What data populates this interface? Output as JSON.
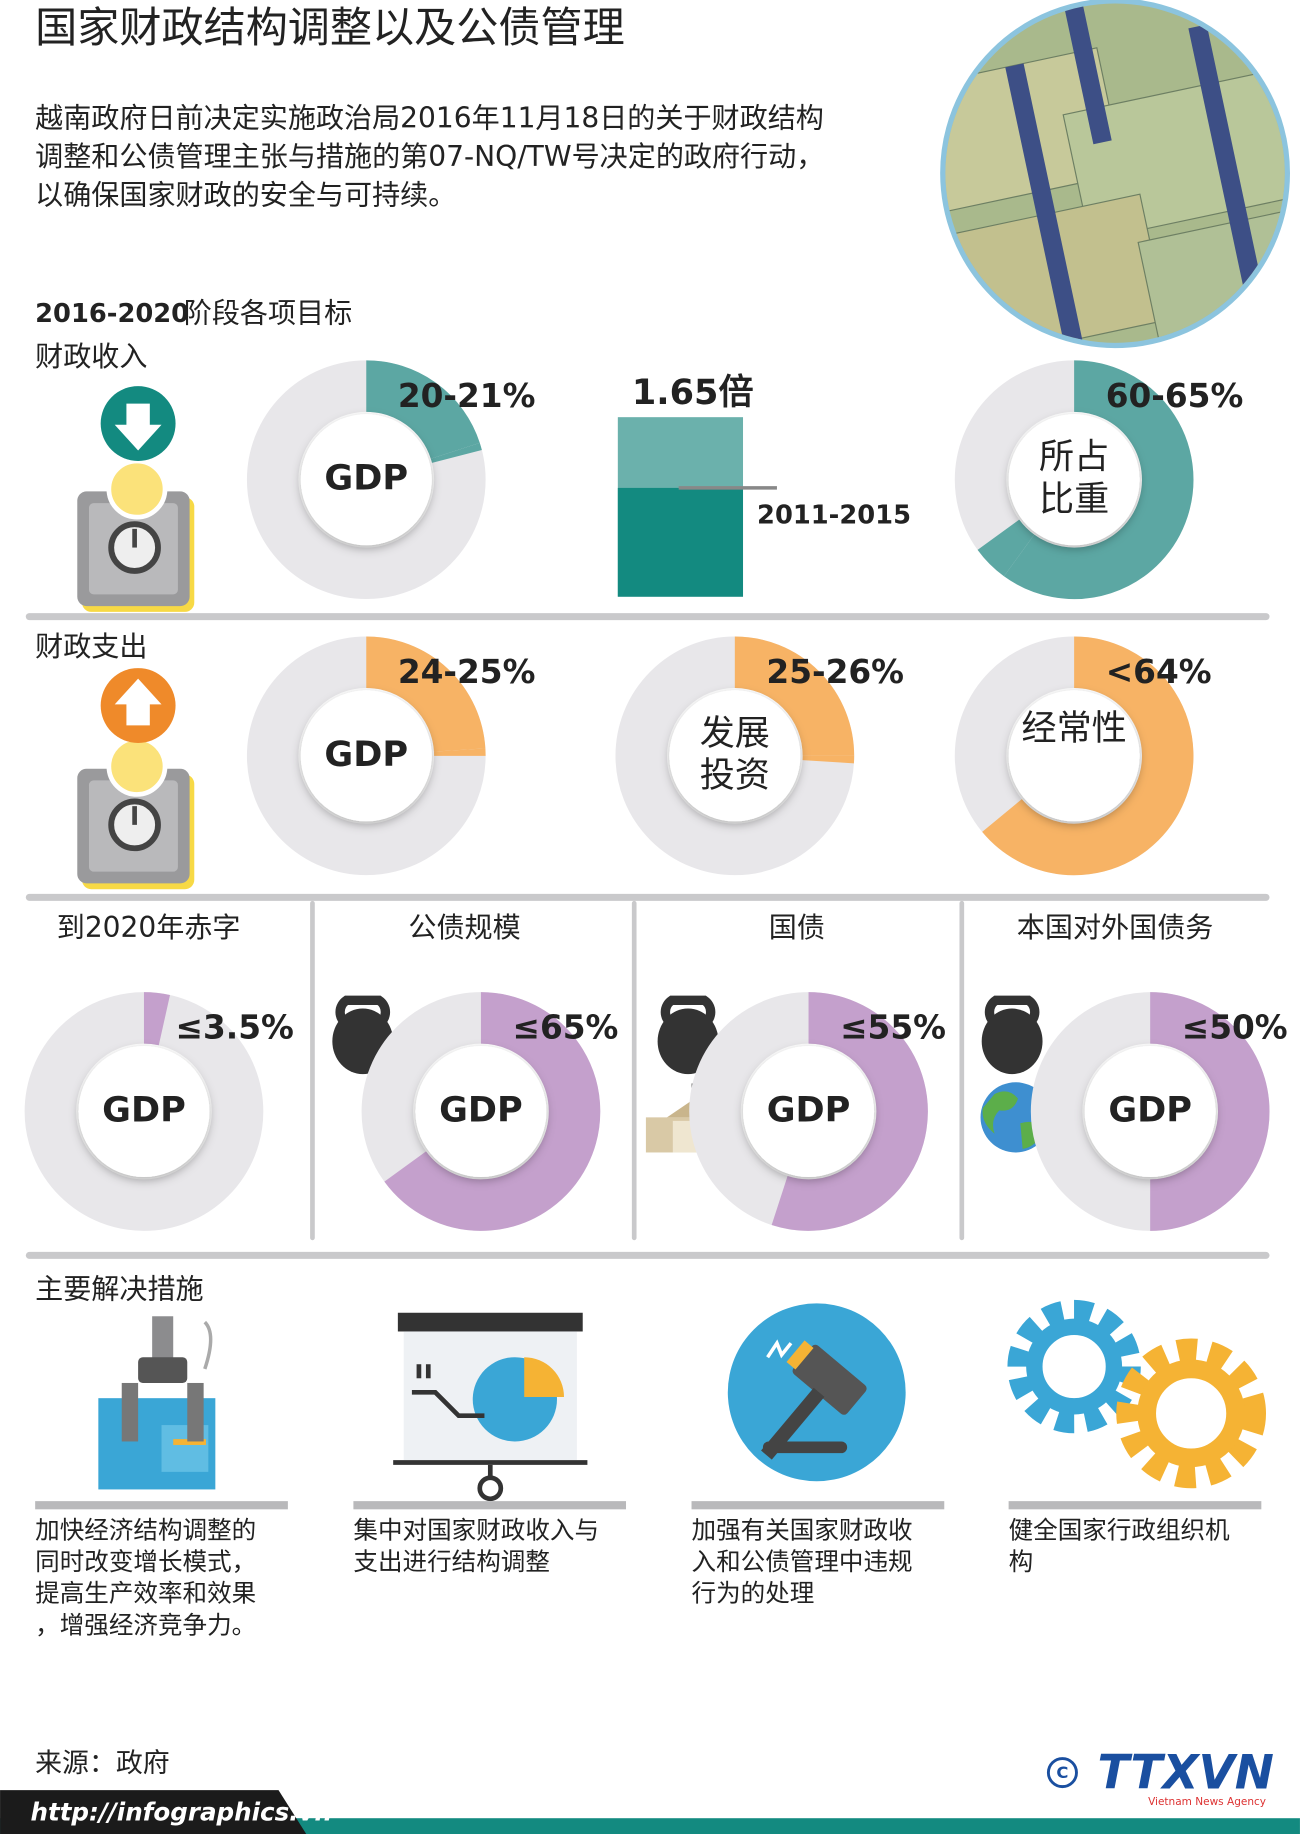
{
  "title": "国家财政结构调整以及公债管理",
  "intro": [
    "越南政府日前决定实施政治局2016年11月18日的关于财政结构",
    "调整和公债管理主张与措施的第07-NQ/TW号决定的政府行动，",
    "以确保国家财政的安全与可持续。"
  ],
  "targets_heading": {
    "period": "2016-2020",
    "label": "阶段各项目标"
  },
  "revenue": {
    "heading": "财政收入",
    "gdp": {
      "center": "GDP",
      "label": "20-21%",
      "low": 20,
      "high": 21
    },
    "growth": {
      "label": "1.65倍",
      "value": 1.65,
      "base_label": "2011-2015"
    },
    "share": {
      "center_lines": [
        "所占",
        "比重"
      ],
      "label": "60-65%",
      "low": 60,
      "high": 65
    }
  },
  "spending": {
    "heading": "财政支出",
    "donuts": [
      {
        "center": "GDP",
        "label": "24-25%",
        "low": 24,
        "high": 25
      },
      {
        "center_lines": [
          "发展",
          "投资"
        ],
        "label": "25-26%",
        "low": 25,
        "high": 26
      },
      {
        "center_lines": [
          "经常性"
        ],
        "label": "<64%",
        "value": 64
      }
    ]
  },
  "debt": {
    "items": [
      {
        "heading": "到2020年赤字",
        "center": "GDP",
        "label": "≤3.5%",
        "value": 3.5
      },
      {
        "heading": "公债规模",
        "center": "GDP",
        "label": "≤65%",
        "value": 65
      },
      {
        "heading": "国债",
        "center": "GDP",
        "label": "≤55%",
        "value": 55
      },
      {
        "heading": "本国对外国债务",
        "center": "GDP",
        "label": "≤50%",
        "value": 50
      }
    ]
  },
  "measures": {
    "heading": "主要解决措施",
    "items": [
      [
        "加快经济结构调整的",
        "同时改变增长模式，",
        "提高生产效率和效果",
        "，增强经济竞争力。"
      ],
      [
        "集中对国家财政收入与",
        "支出进行结构调整"
      ],
      [
        "加强有关国家财政收",
        "入和公债管理中违规",
        "行为的处理"
      ],
      [
        "健全国家行政组织机",
        "构"
      ]
    ]
  },
  "source": "来源：政府",
  "url": "http://infographics.vn",
  "logo": "TTXVN",
  "logo_sub": "Vietnam News Agency"
}
